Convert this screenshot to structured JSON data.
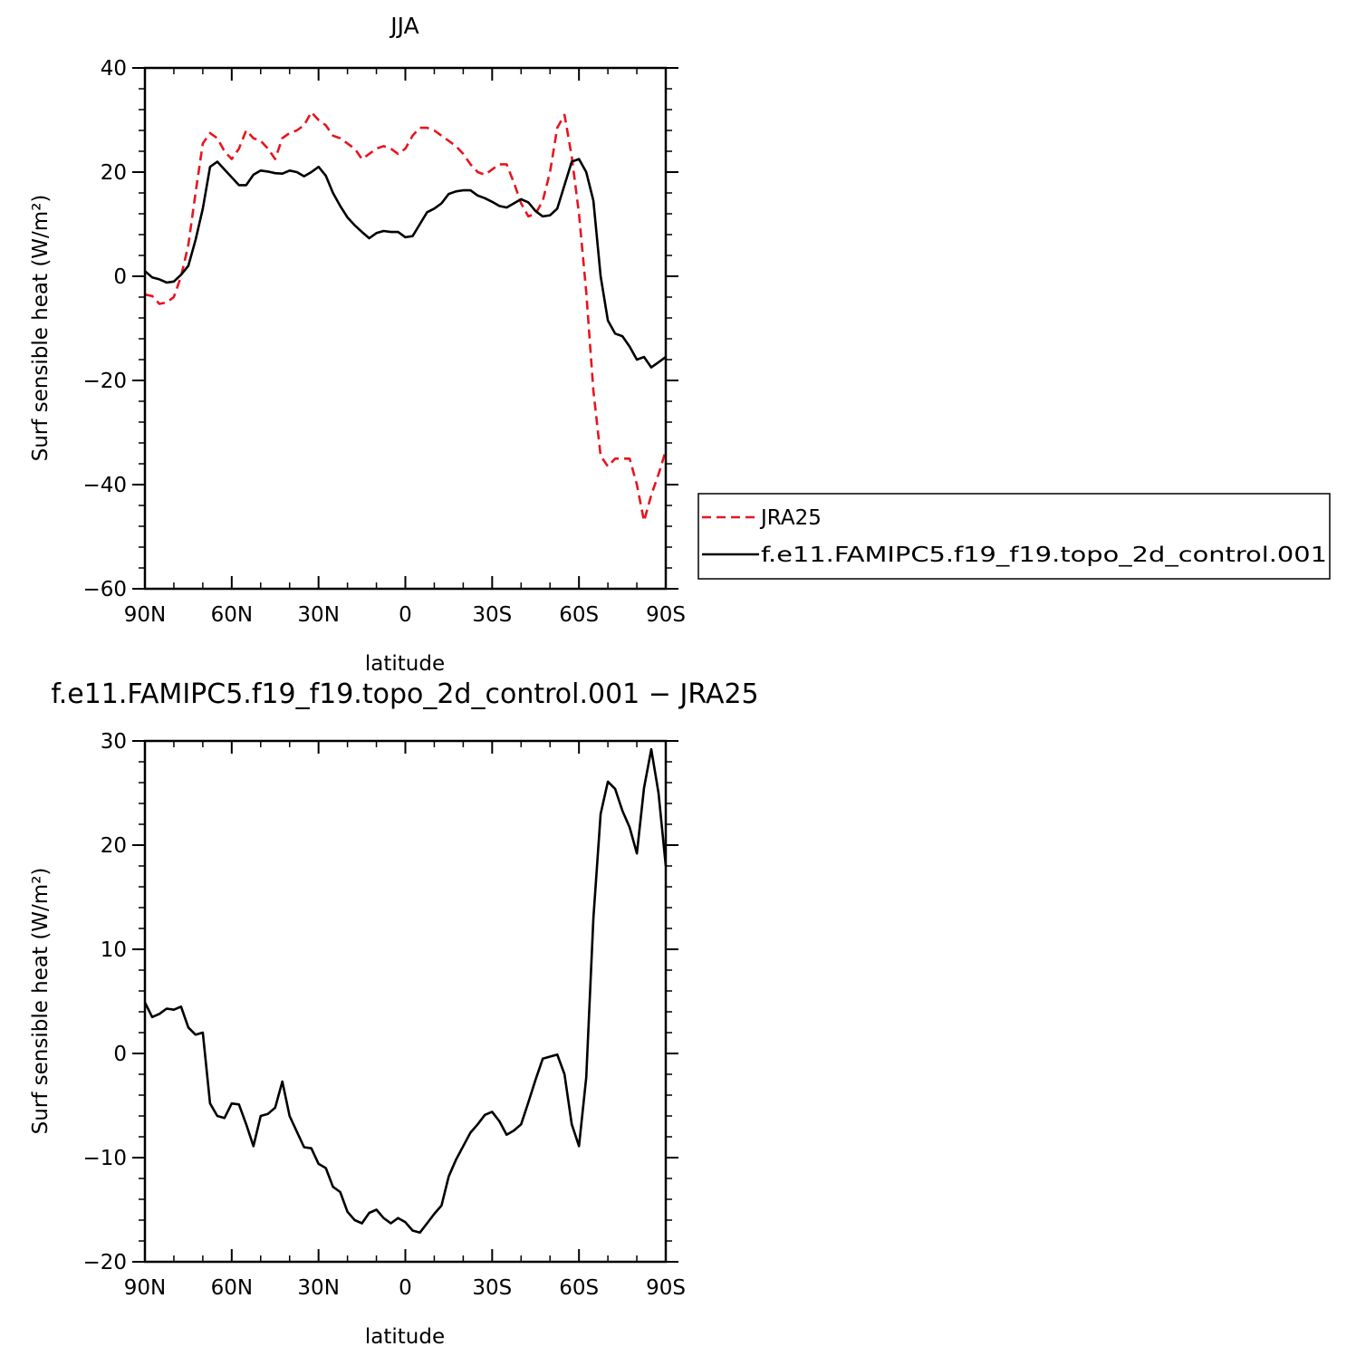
{
  "chart_data": [
    {
      "type": "line",
      "title": "JJA",
      "xlabel": "latitude",
      "ylabel": "Surf sensible heat (W/m²)",
      "xlim": [
        90,
        -90
      ],
      "ylim": [
        -60,
        40
      ],
      "x_ticks": [
        90,
        60,
        30,
        0,
        -30,
        -60,
        -90
      ],
      "x_tick_labels": [
        "90N",
        "60N",
        "30N",
        "0",
        "30S",
        "60S",
        "90S"
      ],
      "y_ticks": [
        -60,
        -40,
        -20,
        0,
        20,
        40
      ],
      "y_tick_labels": [
        "−60",
        "−40",
        "−20",
        "0",
        "20",
        "40"
      ],
      "legend": {
        "placement": "right",
        "entries": [
          "JRA25",
          "f.e11.FAMIPC5.f19_f19.topo_2d_control.001"
        ]
      },
      "series": [
        {
          "name": "JRA25",
          "color": "#e8141e",
          "dash": "dashed",
          "points": [
            [
              90,
              -3.5
            ],
            [
              87.5,
              -3.8
            ],
            [
              85,
              -5.3
            ],
            [
              82.5,
              -5
            ],
            [
              80,
              -4
            ],
            [
              77.5,
              0
            ],
            [
              75,
              6
            ],
            [
              72.5,
              16
            ],
            [
              70,
              25.5
            ],
            [
              67.5,
              27.5
            ],
            [
              65,
              26.5
            ],
            [
              62.5,
              24
            ],
            [
              60,
              22.5
            ],
            [
              57.5,
              24.5
            ],
            [
              55,
              28
            ],
            [
              52.5,
              26.5
            ],
            [
              50,
              26
            ],
            [
              47.5,
              24.5
            ],
            [
              45,
              22.5
            ],
            [
              42.5,
              26.5
            ],
            [
              40,
              27.5
            ],
            [
              37.5,
              28
            ],
            [
              35,
              29
            ],
            [
              32.5,
              31.5
            ],
            [
              30,
              30
            ],
            [
              27.5,
              29
            ],
            [
              25,
              27
            ],
            [
              22.5,
              26.5
            ],
            [
              20,
              25.5
            ],
            [
              17.5,
              24.5
            ],
            [
              15,
              22.5
            ],
            [
              12.5,
              23.5
            ],
            [
              10,
              24.5
            ],
            [
              7.5,
              25
            ],
            [
              5,
              24.5
            ],
            [
              2.5,
              23.5
            ],
            [
              0,
              24.5
            ],
            [
              -2.5,
              27
            ],
            [
              -5,
              28.5
            ],
            [
              -7.5,
              28.5
            ],
            [
              -10,
              28
            ],
            [
              -12.5,
              27
            ],
            [
              -15,
              26
            ],
            [
              -17.5,
              25
            ],
            [
              -20,
              23.5
            ],
            [
              -22.5,
              21.5
            ],
            [
              -25,
              20
            ],
            [
              -27.5,
              19.5
            ],
            [
              -30,
              20.5
            ],
            [
              -32.5,
              21.5
            ],
            [
              -35,
              21.5
            ],
            [
              -37.5,
              18
            ],
            [
              -40,
              14
            ],
            [
              -42.5,
              11.5
            ],
            [
              -45,
              12
            ],
            [
              -47.5,
              14.5
            ],
            [
              -50,
              20
            ],
            [
              -52.5,
              28.5
            ],
            [
              -55,
              31
            ],
            [
              -57.5,
              23
            ],
            [
              -60,
              12
            ],
            [
              -62.5,
              -3
            ],
            [
              -65,
              -22
            ],
            [
              -67.5,
              -34.5
            ],
            [
              -70,
              -36.5
            ],
            [
              -72.5,
              -35
            ],
            [
              -75,
              -35
            ],
            [
              -77.5,
              -35
            ],
            [
              -80,
              -40
            ],
            [
              -82.5,
              -47
            ],
            [
              -85,
              -42
            ],
            [
              -87.5,
              -38
            ],
            [
              -90,
              -33.5
            ]
          ]
        },
        {
          "name": "f.e11.FAMIPC5.f19_f19.topo_2d_control.001",
          "color": "#000000",
          "dash": "solid",
          "points": [
            [
              90,
              1
            ],
            [
              87.5,
              -0.2
            ],
            [
              85,
              -0.6
            ],
            [
              82.5,
              -1.2
            ],
            [
              80,
              -1
            ],
            [
              77.5,
              0.3
            ],
            [
              75,
              2
            ],
            [
              72.5,
              7
            ],
            [
              70,
              13
            ],
            [
              67.5,
              21
            ],
            [
              65,
              22
            ],
            [
              62.5,
              20.5
            ],
            [
              60,
              19
            ],
            [
              57.5,
              17.5
            ],
            [
              55,
              17.5
            ],
            [
              52.5,
              19.5
            ],
            [
              50,
              20.3
            ],
            [
              47.5,
              20.1
            ],
            [
              45,
              19.8
            ],
            [
              42.5,
              19.7
            ],
            [
              40,
              20.3
            ],
            [
              37.5,
              20
            ],
            [
              35,
              19.2
            ],
            [
              32.5,
              20
            ],
            [
              30,
              21
            ],
            [
              27.5,
              19.3
            ],
            [
              25,
              16
            ],
            [
              22.5,
              13.5
            ],
            [
              20,
              11.3
            ],
            [
              17.5,
              9.8
            ],
            [
              15,
              8.5
            ],
            [
              12.5,
              7.3
            ],
            [
              10,
              8.3
            ],
            [
              7.5,
              8.7
            ],
            [
              5,
              8.5
            ],
            [
              2.5,
              8.5
            ],
            [
              0,
              7.5
            ],
            [
              -2.5,
              7.7
            ],
            [
              -5,
              10
            ],
            [
              -7.5,
              12.3
            ],
            [
              -10,
              13
            ],
            [
              -12.5,
              14
            ],
            [
              -15,
              15.8
            ],
            [
              -17.5,
              16.3
            ],
            [
              -20,
              16.5
            ],
            [
              -22.5,
              16.5
            ],
            [
              -25,
              15.5
            ],
            [
              -27.5,
              15
            ],
            [
              -30,
              14.3
            ],
            [
              -32.5,
              13.5
            ],
            [
              -35,
              13.2
            ],
            [
              -37.5,
              14
            ],
            [
              -40,
              14.8
            ],
            [
              -42.5,
              14.2
            ],
            [
              -45,
              12.5
            ],
            [
              -47.5,
              11.5
            ],
            [
              -50,
              11.7
            ],
            [
              -52.5,
              13
            ],
            [
              -55,
              17.5
            ],
            [
              -57.5,
              22
            ],
            [
              -60,
              22.5
            ],
            [
              -62.5,
              20
            ],
            [
              -65,
              14.5
            ],
            [
              -67.5,
              0
            ],
            [
              -70,
              -8.5
            ],
            [
              -72.5,
              -11
            ],
            [
              -75,
              -11.5
            ],
            [
              -77.5,
              -13.5
            ],
            [
              -80,
              -16
            ],
            [
              -82.5,
              -15.5
            ],
            [
              -85,
              -17.5
            ],
            [
              -87.5,
              -16.5
            ],
            [
              -90,
              -15.5
            ]
          ]
        }
      ]
    },
    {
      "type": "line",
      "title": "f.e11.FAMIPC5.f19_f19.topo_2d_control.001 − JRA25",
      "xlabel": "latitude",
      "ylabel": "Surf sensible heat (W/m²)",
      "xlim": [
        90,
        -90
      ],
      "ylim": [
        -20,
        30
      ],
      "x_ticks": [
        90,
        60,
        30,
        0,
        -30,
        -60,
        -90
      ],
      "x_tick_labels": [
        "90N",
        "60N",
        "30N",
        "0",
        "30S",
        "60S",
        "90S"
      ],
      "y_ticks": [
        -20,
        -10,
        0,
        10,
        20,
        30
      ],
      "y_tick_labels": [
        "−20",
        "−10",
        "0",
        "10",
        "20",
        "30"
      ],
      "series": [
        {
          "color": "#000000",
          "dash": "solid",
          "points": [
            [
              90,
              4.9
            ],
            [
              87.5,
              3.5
            ],
            [
              85,
              3.8
            ],
            [
              82.5,
              4.3
            ],
            [
              80,
              4.2
            ],
            [
              77.5,
              4.5
            ],
            [
              75,
              2.5
            ],
            [
              72.5,
              1.8
            ],
            [
              70,
              2
            ],
            [
              67.5,
              -4.8
            ],
            [
              65,
              -6
            ],
            [
              62.5,
              -6.2
            ],
            [
              60,
              -4.8
            ],
            [
              57.5,
              -4.9
            ],
            [
              55,
              -6.8
            ],
            [
              52.5,
              -8.9
            ],
            [
              50,
              -6
            ],
            [
              47.5,
              -5.8
            ],
            [
              45,
              -5.2
            ],
            [
              42.5,
              -2.7
            ],
            [
              40,
              -6
            ],
            [
              37.5,
              -7.5
            ],
            [
              35,
              -9
            ],
            [
              32.5,
              -9.1
            ],
            [
              30,
              -10.6
            ],
            [
              27.5,
              -11
            ],
            [
              25,
              -12.8
            ],
            [
              22.5,
              -13.3
            ],
            [
              20,
              -15.2
            ],
            [
              17.5,
              -16
            ],
            [
              15,
              -16.3
            ],
            [
              12.5,
              -15.3
            ],
            [
              10,
              -15
            ],
            [
              7.5,
              -15.8
            ],
            [
              5,
              -16.3
            ],
            [
              2.5,
              -15.8
            ],
            [
              0,
              -16.2
            ],
            [
              -2.5,
              -17
            ],
            [
              -5,
              -17.2
            ],
            [
              -7.5,
              -16.3
            ],
            [
              -10,
              -15.4
            ],
            [
              -12.5,
              -14.6
            ],
            [
              -15,
              -11.8
            ],
            [
              -17.5,
              -10.2
            ],
            [
              -20,
              -8.9
            ],
            [
              -22.5,
              -7.6
            ],
            [
              -25,
              -6.8
            ],
            [
              -27.5,
              -5.9
            ],
            [
              -30,
              -5.6
            ],
            [
              -32.5,
              -6.5
            ],
            [
              -35,
              -7.8
            ],
            [
              -37.5,
              -7.4
            ],
            [
              -40,
              -6.8
            ],
            [
              -42.5,
              -4.7
            ],
            [
              -45,
              -2.5
            ],
            [
              -47.5,
              -0.5
            ],
            [
              -50,
              -0.3
            ],
            [
              -52.5,
              -0.1
            ],
            [
              -55,
              -2
            ],
            [
              -57.5,
              -6.8
            ],
            [
              -60,
              -8.9
            ],
            [
              -62.5,
              -2.3
            ],
            [
              -65,
              13
            ],
            [
              -67.5,
              23
            ],
            [
              -70,
              26.1
            ],
            [
              -72.5,
              25.4
            ],
            [
              -75,
              23.3
            ],
            [
              -77.5,
              21.7
            ],
            [
              -80,
              19.2
            ],
            [
              -82.5,
              25.5
            ],
            [
              -85,
              29.2
            ],
            [
              -87.5,
              25
            ],
            [
              -90,
              18
            ]
          ]
        }
      ]
    }
  ]
}
